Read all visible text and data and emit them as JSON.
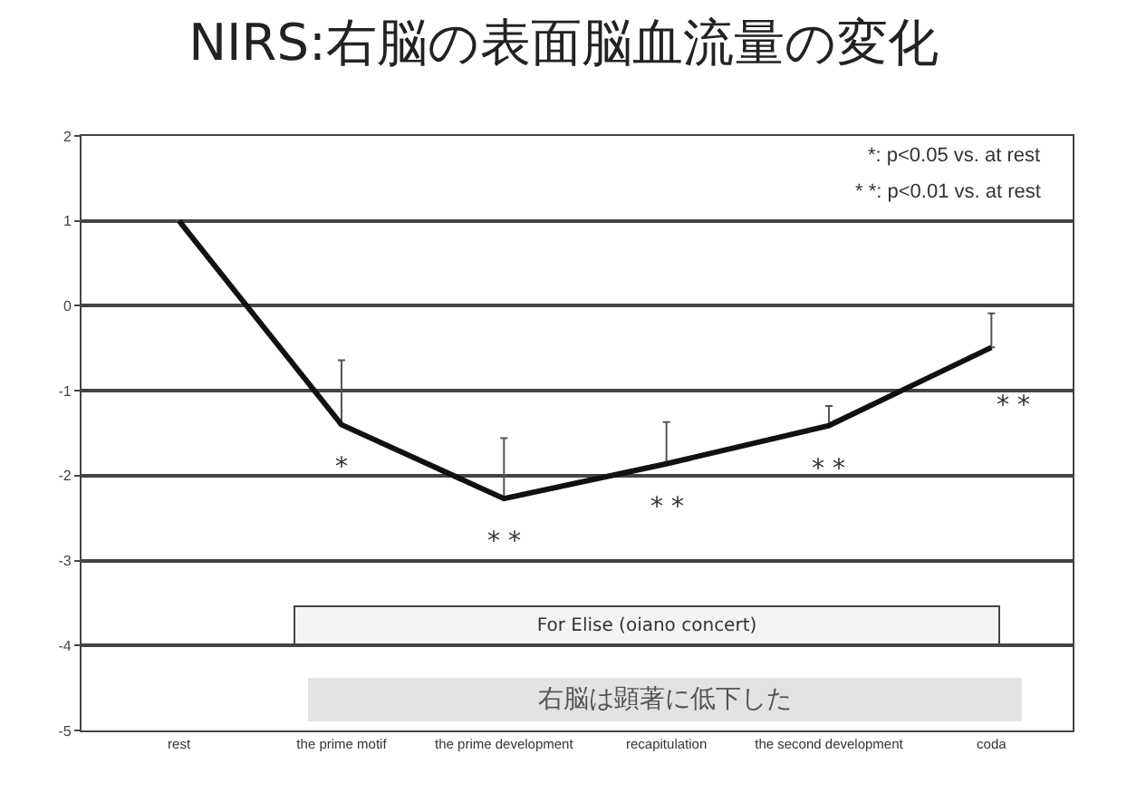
{
  "chart_data": {
    "type": "line",
    "title": "NIRS:右脳の表面脳血流量の変化",
    "categories": [
      "rest",
      "the prime motif",
      "the prime development",
      "recapitulation",
      "the second development",
      "coda"
    ],
    "series": [
      {
        "color": "#111111",
        "values": [
          1.0,
          -1.4,
          -2.27,
          -1.86,
          -1.41,
          -0.49
        ],
        "errors": [
          null,
          [
            -1.4,
            -0.64
          ],
          [
            -2.27,
            -1.56
          ],
          [
            -1.86,
            -1.37
          ],
          [
            -1.41,
            -1.18
          ],
          [
            -0.49,
            -0.09
          ]
        ]
      }
    ],
    "ylim": [
      -5,
      2
    ],
    "yticks": [
      -5,
      -4,
      -3,
      -2,
      -1,
      0,
      1,
      2
    ],
    "grid": "y",
    "marker": "none",
    "line_style": "solid",
    "annotations": [
      {
        "text": "*",
        "x": "the prime motif",
        "y": -1.4
      },
      {
        "text": "* *",
        "x": "the prime development",
        "y": -2.27
      },
      {
        "text": "* *",
        "x": "recapitulation",
        "y": -1.86
      },
      {
        "text": "* *",
        "x": "the second development",
        "y": -1.41
      },
      {
        "text": "* *",
        "x": "coda",
        "y": -0.49
      },
      "*: p<0.05 vs. at rest",
      "* *: p<0.01 vs. at rest",
      "For Elise (oiano concert)",
      "右脳は顕著に低下した"
    ]
  }
}
